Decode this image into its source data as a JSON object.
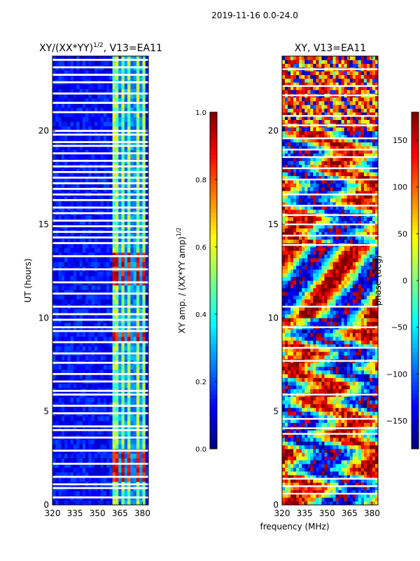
{
  "figure": {
    "suptitle": "2019-11-16 0.0-24.0",
    "xlabel_shared": "frequency (MHz)"
  },
  "chart_data": [
    {
      "type": "heatmap",
      "id": "amp",
      "title_main": "XY/(XX*YY)",
      "title_exp": "1/2",
      "title_tail": ", V13=EA11",
      "ylabel": "UT (hours)",
      "xlim": [
        320,
        384
      ],
      "ylim": [
        0,
        24
      ],
      "xticks": [
        320,
        335,
        350,
        365,
        380
      ],
      "yticks": [
        0,
        5,
        10,
        15,
        20
      ],
      "colorscale": "jet",
      "colorbar": {
        "label_main": "XY amp. / (XX*YY amp)",
        "label_exp": "1/2",
        "vmin": 0.0,
        "vmax": 1.0,
        "ticks": [
          "0.0",
          "0.2",
          "0.4",
          "0.6",
          "0.8",
          "1.0"
        ]
      },
      "background_value": 0.12,
      "bright_band_mhz": [
        361,
        381
      ],
      "flagged_hours": [
        0.4,
        0.9,
        1.1,
        1.5,
        2.2,
        2.9,
        3.6,
        4.0,
        4.2,
        4.9,
        5.3,
        5.9,
        6.1,
        6.6,
        7.0,
        7.6,
        8.1,
        8.7,
        9.3,
        9.5,
        9.9,
        10.2,
        10.6,
        11.3,
        11.9,
        12.6,
        13.3,
        14.0,
        14.3,
        14.6,
        14.9,
        15.2,
        15.6,
        15.9,
        16.3,
        16.6,
        16.9,
        17.2,
        17.5,
        17.8,
        18.1,
        18.4,
        18.8,
        19.2,
        19.4,
        19.8,
        20.0,
        21.0,
        21.5,
        22.0,
        22.6,
        23.0,
        23.4,
        23.8
      ],
      "hot_hours": [
        [
          1.2,
          3.0
        ],
        [
          11.8,
          13.6
        ],
        [
          8.8,
          9.3
        ]
      ]
    },
    {
      "type": "heatmap",
      "id": "phase",
      "title_main": "XY, V13=EA11",
      "ylim": [
        0,
        24
      ],
      "xlim": [
        320,
        384
      ],
      "xticks": [
        320,
        335,
        350,
        365,
        380
      ],
      "yticks": [
        0,
        5,
        10,
        15,
        20
      ],
      "colorscale": "jet",
      "colorbar": {
        "label_main": "phase (deg)",
        "vmin": -180,
        "vmax": 180,
        "ticks": [
          "−150",
          "−100",
          "−50",
          "0",
          "50",
          "100",
          "150"
        ]
      },
      "flagged_hours": [
        0.6,
        1.0,
        1.4,
        3.8,
        4.1,
        4.6,
        5.9,
        7.7,
        8.4,
        9.5,
        10.6,
        13.9,
        14.4,
        15.0,
        15.5,
        16.0,
        16.6,
        17.4,
        18.0,
        18.6,
        19.0,
        19.6,
        20.3,
        20.8,
        21.9,
        22.4,
        23.3
      ]
    }
  ]
}
